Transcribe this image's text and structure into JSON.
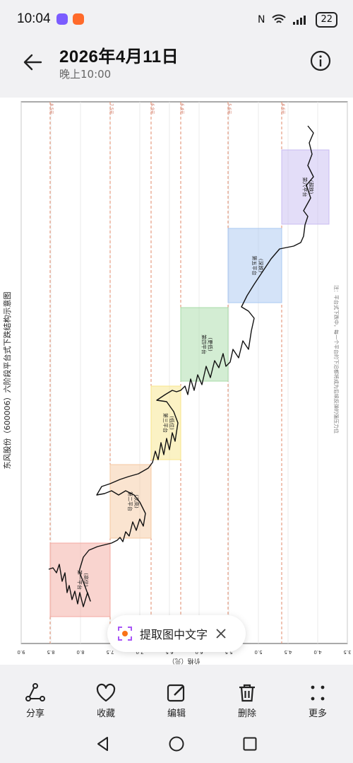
{
  "status_bar": {
    "time": "10:04",
    "battery": "22"
  },
  "header": {
    "title": "2026年4月11日",
    "subtitle": "晚上10:00"
  },
  "chart_data": {
    "type": "line",
    "title": "东风股份（600006）六阶段平台式下跌结构示意图",
    "xlabel": "价格（元）",
    "x_ticks": [
      "9.0",
      "8.5",
      "8.0",
      "7.5",
      "7.0",
      "6.5",
      "6.0",
      "5.5",
      "5.0",
      "4.5",
      "4.0",
      "3.5"
    ],
    "ref_lines": [
      "8.5元",
      "7.5元",
      "6.9元",
      "6.4元",
      "5.6元",
      "4.6元"
    ],
    "platforms": [
      {
        "label": "第一平台",
        "sub": "(高位)",
        "color": "#f4a9a0"
      },
      {
        "label": "第二平台",
        "sub": "(次高)",
        "color": "#f6c9a2"
      },
      {
        "label": "第三平台",
        "sub": "(低位)",
        "color": "#f8e58a"
      },
      {
        "label": "第四平台",
        "sub": "(更低)",
        "color": "#a8dca8"
      },
      {
        "label": "第五平台",
        "sub": "(深跌)",
        "color": "#a9c8f2"
      },
      {
        "label": "第六平台",
        "sub": "(超跌)",
        "color": "#c8bcf2"
      }
    ],
    "note": "注：平台式下跌中，每一个平台的下沿都将成为后续反弹的强压力位"
  },
  "ocr_pill": {
    "label": "提取图中文字"
  },
  "toolbar": [
    {
      "label": "分享",
      "icon": "share-icon"
    },
    {
      "label": "收藏",
      "icon": "heart-icon"
    },
    {
      "label": "编辑",
      "icon": "edit-icon"
    },
    {
      "label": "删除",
      "icon": "trash-icon"
    },
    {
      "label": "更多",
      "icon": "more-icon"
    }
  ]
}
